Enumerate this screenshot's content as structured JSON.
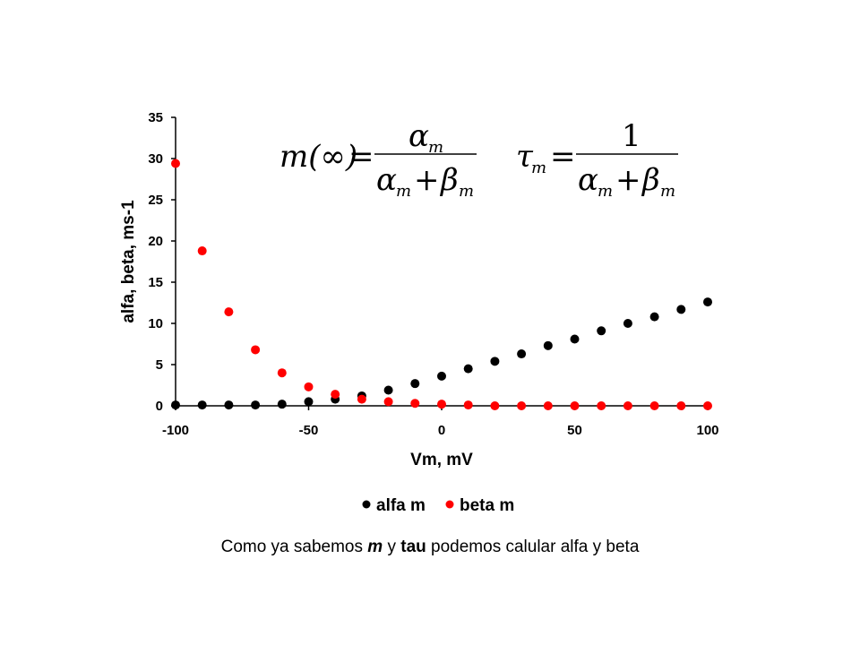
{
  "chart_data": {
    "type": "scatter",
    "xlabel": "Vm, mV",
    "ylabel": "alfa, beta, ms-1",
    "xlim": [
      -100,
      100
    ],
    "ylim": [
      0,
      35
    ],
    "xticks": [
      "-100",
      "-50",
      "0",
      "50",
      "100"
    ],
    "yticks": [
      "0",
      "5",
      "10",
      "15",
      "20",
      "25",
      "30",
      "35"
    ],
    "legend_position": "bottom",
    "grid": false,
    "series": [
      {
        "name": "alfa m",
        "color": "#000000",
        "x": [
          -100,
          -90,
          -80,
          -70,
          -60,
          -50,
          -40,
          -30,
          -20,
          -10,
          0,
          10,
          20,
          30,
          40,
          50,
          60,
          70,
          80,
          90,
          100
        ],
        "y": [
          0.1,
          0.1,
          0.1,
          0.1,
          0.2,
          0.5,
          0.8,
          1.2,
          1.9,
          2.7,
          3.6,
          4.5,
          5.4,
          6.3,
          7.3,
          8.1,
          9.1,
          10.0,
          10.8,
          11.7,
          12.6
        ]
      },
      {
        "name": "beta m",
        "color": "#ff0000",
        "x": [
          -100,
          -90,
          -80,
          -70,
          -60,
          -50,
          -40,
          -30,
          -20,
          -10,
          0,
          10,
          20,
          30,
          40,
          50,
          60,
          70,
          80,
          90,
          100
        ],
        "y": [
          29.4,
          18.8,
          11.4,
          6.8,
          4.0,
          2.3,
          1.4,
          0.8,
          0.5,
          0.3,
          0.2,
          0.1,
          0.0,
          0.0,
          0.0,
          0.0,
          0.0,
          0.0,
          0.0,
          0.0,
          0.0
        ]
      }
    ],
    "equations": {
      "m_inf": {
        "lhs": "m(∞)",
        "equals": "=",
        "num_sym": "α",
        "den_a": "α",
        "plus": "+",
        "den_b": "β",
        "sub": "m"
      },
      "tau": {
        "lhs": "τ",
        "lhs_sub": "m",
        "equals": "=",
        "num": "1",
        "den_a": "α",
        "plus": "+",
        "den_b": "β",
        "sub": "m"
      }
    }
  },
  "caption": {
    "part1": "Como ya sabemos ",
    "m": "m",
    "part2": " y ",
    "tau": "tau",
    "part3": " podemos calular alfa y beta"
  }
}
